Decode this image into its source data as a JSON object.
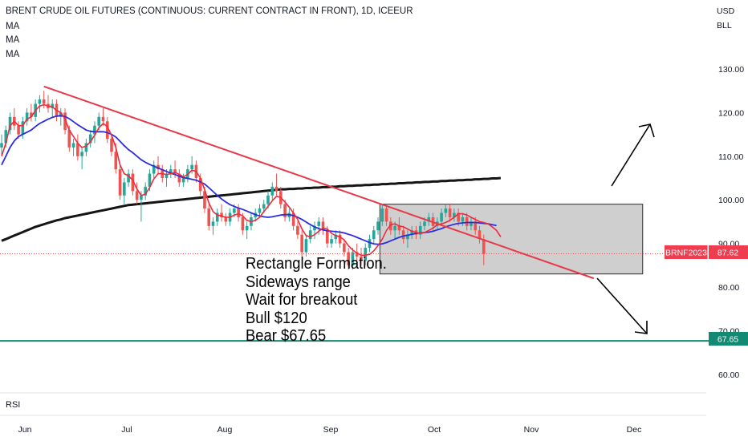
{
  "header": {
    "title": "BRENT CRUDE OIL FUTURES (CONTINUOUS: CURRENT CONTRACT IN FRONT), 1D, ICEEUR",
    "indicators": [
      "MA",
      "MA",
      "MA"
    ],
    "currency": "USD",
    "unit": "BLL"
  },
  "annotation": {
    "lines": [
      "Rectangle Formation.",
      "Sideways range",
      "Wait for breakout",
      "Bull $120",
      "Bear $67.65"
    ]
  },
  "sub_pane": {
    "label": "RSI"
  },
  "price_tag": {
    "symbol": "BRNF2023",
    "value": "87.62"
  },
  "level_tag": {
    "value": "67.65"
  },
  "colors": {
    "up": "#26a69a",
    "down": "#ef5350",
    "ma_fast": "#ef2a3c",
    "ma_mid": "#2a2de0",
    "ma_slow": "#151515",
    "trendline": "#e8394a",
    "support": "#138a74",
    "rectangle_fill": "#c8c8c8"
  },
  "chart_data": {
    "type": "candlestick",
    "title": "BRENT CRUDE OIL FUTURES (CONTINUOUS: CURRENT CONTRACT IN FRONT), 1D, ICEEUR",
    "y_axis": {
      "ticks": [
        60,
        70,
        80,
        90,
        100,
        110,
        120,
        130
      ],
      "tick_labels": [
        "60.00",
        "70.00",
        "80.00",
        "90.00",
        "100.00",
        "110.00",
        "120.00",
        "130.00"
      ],
      "range": [
        56.5,
        142.0
      ]
    },
    "x_axis": {
      "tick_labels": [
        "Jun",
        "Jul",
        "Aug",
        "Sep",
        "Oct",
        "Nov",
        "Dec"
      ]
    },
    "candles": [
      {
        "o": 112.0,
        "h": 115.0,
        "l": 110.0,
        "c": 113.0
      },
      {
        "o": 113.0,
        "h": 117.0,
        "l": 112.0,
        "c": 116.0
      },
      {
        "o": 116.0,
        "h": 120.0,
        "l": 115.0,
        "c": 119.0
      },
      {
        "o": 119.0,
        "h": 121.0,
        "l": 116.0,
        "c": 117.0
      },
      {
        "o": 117.0,
        "h": 118.0,
        "l": 114.0,
        "c": 115.0
      },
      {
        "o": 115.0,
        "h": 119.0,
        "l": 114.0,
        "c": 118.0
      },
      {
        "o": 118.0,
        "h": 121.0,
        "l": 117.0,
        "c": 120.0
      },
      {
        "o": 120.0,
        "h": 122.0,
        "l": 118.0,
        "c": 119.0
      },
      {
        "o": 119.0,
        "h": 123.0,
        "l": 118.0,
        "c": 122.0
      },
      {
        "o": 122.0,
        "h": 124.0,
        "l": 120.0,
        "c": 123.0
      },
      {
        "o": 123.0,
        "h": 125.0,
        "l": 121.0,
        "c": 122.0
      },
      {
        "o": 122.0,
        "h": 124.0,
        "l": 120.0,
        "c": 121.0
      },
      {
        "o": 121.0,
        "h": 123.0,
        "l": 119.0,
        "c": 122.0
      },
      {
        "o": 122.0,
        "h": 123.0,
        "l": 118.0,
        "c": 119.0
      },
      {
        "o": 119.0,
        "h": 121.0,
        "l": 117.0,
        "c": 120.0
      },
      {
        "o": 120.0,
        "h": 121.0,
        "l": 115.0,
        "c": 116.0
      },
      {
        "o": 116.0,
        "h": 117.0,
        "l": 111.0,
        "c": 112.0
      },
      {
        "o": 112.0,
        "h": 114.0,
        "l": 110.0,
        "c": 113.0
      },
      {
        "o": 113.0,
        "h": 115.0,
        "l": 109.0,
        "c": 110.0
      },
      {
        "o": 110.0,
        "h": 112.0,
        "l": 107.0,
        "c": 111.0
      },
      {
        "o": 111.0,
        "h": 114.0,
        "l": 110.0,
        "c": 113.0
      },
      {
        "o": 113.0,
        "h": 116.0,
        "l": 112.0,
        "c": 115.0
      },
      {
        "o": 115.0,
        "h": 118.0,
        "l": 113.0,
        "c": 117.0
      },
      {
        "o": 117.0,
        "h": 120.0,
        "l": 116.0,
        "c": 119.0
      },
      {
        "o": 119.0,
        "h": 121.0,
        "l": 117.0,
        "c": 118.0
      },
      {
        "o": 118.0,
        "h": 119.0,
        "l": 113.0,
        "c": 114.0
      },
      {
        "o": 114.0,
        "h": 115.0,
        "l": 110.0,
        "c": 111.0
      },
      {
        "o": 111.0,
        "h": 113.0,
        "l": 106.0,
        "c": 107.0
      },
      {
        "o": 107.0,
        "h": 108.0,
        "l": 100.0,
        "c": 101.0
      },
      {
        "o": 101.0,
        "h": 105.0,
        "l": 99.0,
        "c": 104.0
      },
      {
        "o": 104.0,
        "h": 107.0,
        "l": 103.0,
        "c": 106.0
      },
      {
        "o": 106.0,
        "h": 107.0,
        "l": 101.0,
        "c": 102.0
      },
      {
        "o": 102.0,
        "h": 104.0,
        "l": 99.0,
        "c": 100.0
      },
      {
        "o": 100.0,
        "h": 102.0,
        "l": 95.0,
        "c": 101.0
      },
      {
        "o": 101.0,
        "h": 104.0,
        "l": 100.0,
        "c": 103.0
      },
      {
        "o": 103.0,
        "h": 107.0,
        "l": 102.0,
        "c": 106.0
      },
      {
        "o": 106.0,
        "h": 109.0,
        "l": 105.0,
        "c": 108.0
      },
      {
        "o": 108.0,
        "h": 110.0,
        "l": 106.0,
        "c": 107.0
      },
      {
        "o": 107.0,
        "h": 108.0,
        "l": 104.0,
        "c": 105.0
      },
      {
        "o": 105.0,
        "h": 107.0,
        "l": 103.0,
        "c": 106.0
      },
      {
        "o": 106.0,
        "h": 108.0,
        "l": 105.0,
        "c": 107.0
      },
      {
        "o": 107.0,
        "h": 109.0,
        "l": 105.0,
        "c": 106.0
      },
      {
        "o": 106.0,
        "h": 107.0,
        "l": 103.0,
        "c": 104.0
      },
      {
        "o": 104.0,
        "h": 106.0,
        "l": 103.0,
        "c": 105.0
      },
      {
        "o": 105.0,
        "h": 108.0,
        "l": 104.0,
        "c": 107.0
      },
      {
        "o": 107.0,
        "h": 110.0,
        "l": 106.0,
        "c": 108.0
      },
      {
        "o": 108.0,
        "h": 109.0,
        "l": 104.0,
        "c": 105.0
      },
      {
        "o": 105.0,
        "h": 106.0,
        "l": 101.0,
        "c": 102.0
      },
      {
        "o": 102.0,
        "h": 103.0,
        "l": 97.0,
        "c": 98.0
      },
      {
        "o": 98.0,
        "h": 99.0,
        "l": 93.0,
        "c": 94.0
      },
      {
        "o": 94.0,
        "h": 96.0,
        "l": 92.0,
        "c": 95.0
      },
      {
        "o": 95.0,
        "h": 98.0,
        "l": 94.0,
        "c": 97.0
      },
      {
        "o": 97.0,
        "h": 99.0,
        "l": 95.0,
        "c": 96.0
      },
      {
        "o": 96.0,
        "h": 97.0,
        "l": 94.0,
        "c": 95.0
      },
      {
        "o": 95.0,
        "h": 98.0,
        "l": 94.0,
        "c": 97.0
      },
      {
        "o": 97.0,
        "h": 99.0,
        "l": 96.0,
        "c": 98.0
      },
      {
        "o": 98.0,
        "h": 99.0,
        "l": 95.0,
        "c": 96.0
      },
      {
        "o": 96.0,
        "h": 97.0,
        "l": 92.0,
        "c": 93.0
      },
      {
        "o": 93.0,
        "h": 95.0,
        "l": 91.0,
        "c": 94.0
      },
      {
        "o": 94.0,
        "h": 97.0,
        "l": 93.0,
        "c": 96.0
      },
      {
        "o": 96.0,
        "h": 98.0,
        "l": 95.0,
        "c": 97.0
      },
      {
        "o": 97.0,
        "h": 99.0,
        "l": 96.0,
        "c": 98.0
      },
      {
        "o": 98.0,
        "h": 100.0,
        "l": 97.0,
        "c": 99.0
      },
      {
        "o": 99.0,
        "h": 102.0,
        "l": 98.0,
        "c": 101.0
      },
      {
        "o": 101.0,
        "h": 104.0,
        "l": 100.0,
        "c": 103.0
      },
      {
        "o": 103.0,
        "h": 106.0,
        "l": 101.0,
        "c": 102.0
      },
      {
        "o": 102.0,
        "h": 103.0,
        "l": 98.0,
        "c": 99.0
      },
      {
        "o": 99.0,
        "h": 100.0,
        "l": 95.0,
        "c": 96.0
      },
      {
        "o": 96.0,
        "h": 98.0,
        "l": 95.0,
        "c": 97.0
      },
      {
        "o": 97.0,
        "h": 98.0,
        "l": 93.0,
        "c": 94.0
      },
      {
        "o": 94.0,
        "h": 95.0,
        "l": 91.0,
        "c": 92.0
      },
      {
        "o": 92.0,
        "h": 93.0,
        "l": 87.0,
        "c": 88.0
      },
      {
        "o": 88.0,
        "h": 92.0,
        "l": 87.0,
        "c": 91.0
      },
      {
        "o": 91.0,
        "h": 94.0,
        "l": 90.0,
        "c": 93.0
      },
      {
        "o": 93.0,
        "h": 95.0,
        "l": 91.0,
        "c": 94.0
      },
      {
        "o": 94.0,
        "h": 96.0,
        "l": 92.0,
        "c": 95.0
      },
      {
        "o": 95.0,
        "h": 96.0,
        "l": 92.0,
        "c": 93.0
      },
      {
        "o": 93.0,
        "h": 94.0,
        "l": 89.0,
        "c": 90.0
      },
      {
        "o": 90.0,
        "h": 92.0,
        "l": 89.0,
        "c": 91.0
      },
      {
        "o": 91.0,
        "h": 93.0,
        "l": 90.0,
        "c": 92.0
      },
      {
        "o": 92.0,
        "h": 93.0,
        "l": 89.0,
        "c": 90.0
      },
      {
        "o": 90.0,
        "h": 91.0,
        "l": 87.0,
        "c": 88.0
      },
      {
        "o": 88.0,
        "h": 89.0,
        "l": 84.0,
        "c": 85.0
      },
      {
        "o": 85.0,
        "h": 89.0,
        "l": 84.0,
        "c": 88.0
      },
      {
        "o": 88.0,
        "h": 90.0,
        "l": 86.0,
        "c": 87.0
      },
      {
        "o": 87.0,
        "h": 89.0,
        "l": 85.0,
        "c": 86.0
      },
      {
        "o": 86.0,
        "h": 90.0,
        "l": 85.0,
        "c": 89.0
      },
      {
        "o": 89.0,
        "h": 92.0,
        "l": 88.0,
        "c": 91.0
      },
      {
        "o": 91.0,
        "h": 94.0,
        "l": 90.0,
        "c": 93.0
      },
      {
        "o": 93.0,
        "h": 96.0,
        "l": 92.0,
        "c": 95.0
      },
      {
        "o": 95.0,
        "h": 99.0,
        "l": 94.0,
        "c": 98.0
      },
      {
        "o": 98.0,
        "h": 99.0,
        "l": 94.0,
        "c": 95.0
      },
      {
        "o": 95.0,
        "h": 96.0,
        "l": 92.0,
        "c": 93.0
      },
      {
        "o": 93.0,
        "h": 95.0,
        "l": 91.0,
        "c": 94.0
      },
      {
        "o": 94.0,
        "h": 96.0,
        "l": 92.0,
        "c": 93.0
      },
      {
        "o": 93.0,
        "h": 94.0,
        "l": 90.0,
        "c": 91.0
      },
      {
        "o": 91.0,
        "h": 93.0,
        "l": 89.0,
        "c": 92.0
      },
      {
        "o": 92.0,
        "h": 94.0,
        "l": 91.0,
        "c": 93.0
      },
      {
        "o": 93.0,
        "h": 94.0,
        "l": 91.0,
        "c": 92.0
      },
      {
        "o": 92.0,
        "h": 95.0,
        "l": 91.0,
        "c": 94.0
      },
      {
        "o": 94.0,
        "h": 96.0,
        "l": 93.0,
        "c": 95.0
      },
      {
        "o": 95.0,
        "h": 97.0,
        "l": 94.0,
        "c": 96.0
      },
      {
        "o": 96.0,
        "h": 97.0,
        "l": 93.0,
        "c": 94.0
      },
      {
        "o": 94.0,
        "h": 96.0,
        "l": 93.0,
        "c": 95.0
      },
      {
        "o": 95.0,
        "h": 98.0,
        "l": 94.0,
        "c": 97.0
      },
      {
        "o": 97.0,
        "h": 99.0,
        "l": 96.0,
        "c": 98.0
      },
      {
        "o": 98.0,
        "h": 99.0,
        "l": 95.0,
        "c": 96.0
      },
      {
        "o": 96.0,
        "h": 98.0,
        "l": 95.0,
        "c": 97.0
      },
      {
        "o": 97.0,
        "h": 98.0,
        "l": 94.0,
        "c": 95.0
      },
      {
        "o": 95.0,
        "h": 97.0,
        "l": 94.0,
        "c": 96.0
      },
      {
        "o": 96.0,
        "h": 97.0,
        "l": 93.0,
        "c": 94.0
      },
      {
        "o": 94.0,
        "h": 96.0,
        "l": 93.0,
        "c": 95.0
      },
      {
        "o": 95.0,
        "h": 96.0,
        "l": 92.0,
        "c": 93.0
      },
      {
        "o": 93.0,
        "h": 94.0,
        "l": 90.0,
        "c": 91.0
      },
      {
        "o": 91.0,
        "h": 92.0,
        "l": 85.0,
        "c": 87.62
      }
    ],
    "moving_averages": [
      {
        "label": "MA",
        "role": "fast",
        "color": "#ef2a3c",
        "values": [
          110.0,
          113.0,
          117.0,
          118.0,
          117.0,
          117.0,
          118.5,
          119.0,
          120.5,
          121.5,
          121.8,
          121.5,
          121.3,
          120.5,
          120.0,
          118.5,
          116.0,
          114.5,
          113.0,
          112.0,
          112.3,
          113.3,
          114.8,
          116.5,
          117.5,
          116.8,
          114.8,
          112.0,
          108.0,
          106.0,
          105.5,
          104.5,
          102.5,
          101.0,
          101.3,
          102.8,
          104.8,
          106.0,
          106.0,
          105.8,
          106.0,
          106.3,
          105.8,
          105.3,
          105.8,
          106.8,
          106.5,
          105.0,
          102.3,
          99.3,
          97.3,
          96.5,
          96.3,
          96.0,
          96.0,
          96.5,
          96.8,
          96.3,
          95.3,
          95.0,
          95.3,
          96.0,
          97.3,
          98.5,
          99.8,
          100.8,
          100.5,
          99.5,
          98.3,
          97.0,
          95.5,
          93.3,
          91.8,
          91.5,
          92.0,
          92.8,
          93.5,
          93.3,
          92.3,
          91.8,
          91.5,
          90.8,
          89.5,
          88.5,
          87.8,
          87.3,
          87.3,
          87.5,
          88.3,
          89.5,
          91.0,
          93.0,
          94.3,
          94.5,
          94.0,
          93.8,
          93.3,
          92.8,
          92.5,
          92.3,
          92.5,
          93.0,
          93.5,
          94.3,
          94.5,
          94.8,
          95.3,
          96.0,
          96.8,
          96.8,
          96.5,
          96.0,
          95.5,
          95.0,
          94.8,
          94.5,
          93.8,
          93.0,
          91.5
        ]
      },
      {
        "label": "MA",
        "role": "mid",
        "color": "#2a2de0",
        "values": [
          108.0,
          110.0,
          112.0,
          113.5,
          114.5,
          115.0,
          115.5,
          116.0,
          116.8,
          117.5,
          118.0,
          118.5,
          118.9,
          119.2,
          119.3,
          119.1,
          118.6,
          117.9,
          117.2,
          116.6,
          116.0,
          115.7,
          115.6,
          115.6,
          115.6,
          115.4,
          115.0,
          114.4,
          113.4,
          112.4,
          111.5,
          110.8,
          110.0,
          109.2,
          108.6,
          108.1,
          107.7,
          107.3,
          106.9,
          106.5,
          106.1,
          105.8,
          105.4,
          105.1,
          104.9,
          104.7,
          104.5,
          104.1,
          103.6,
          102.8,
          101.9,
          101.0,
          100.2,
          99.5,
          98.9,
          98.5,
          98.1,
          97.8,
          97.4,
          97.0,
          96.6,
          96.3,
          96.1,
          96.0,
          96.1,
          96.3,
          96.5,
          96.6,
          96.6,
          96.4,
          96.0,
          95.5,
          94.9,
          94.3,
          93.8,
          93.4,
          93.1,
          92.9,
          92.8,
          92.7,
          92.6,
          92.4,
          92.1,
          91.8,
          91.4,
          91.0,
          90.6,
          90.2,
          89.9,
          89.8,
          89.9,
          90.2,
          90.6,
          91.0,
          91.4,
          91.7,
          91.9,
          92.1,
          92.3,
          92.4,
          92.5,
          92.6,
          92.8,
          93.1,
          93.4,
          93.8,
          94.1,
          94.4,
          94.6,
          94.7,
          94.8,
          94.8,
          94.8,
          94.7,
          94.6,
          94.5,
          94.3,
          94.1
        ]
      },
      {
        "label": "MA",
        "role": "slow",
        "color": "#151515",
        "values": [
          90.6,
          91.0,
          91.4,
          91.8,
          92.2,
          92.6,
          93.0,
          93.4,
          93.8,
          94.1,
          94.4,
          94.7,
          95.0,
          95.3,
          95.5,
          95.8,
          96.0,
          96.2,
          96.4,
          96.6,
          96.8,
          97.0,
          97.2,
          97.4,
          97.6,
          97.8,
          98.0,
          98.2,
          98.4,
          98.6,
          98.8,
          98.9,
          99.0,
          99.1,
          99.2,
          99.3,
          99.4,
          99.5,
          99.6,
          99.7,
          99.8,
          99.9,
          100.0,
          100.1,
          100.2,
          100.3,
          100.4,
          100.5,
          100.6,
          100.7,
          100.8,
          100.9,
          101.0,
          101.1,
          101.2,
          101.3,
          101.4,
          101.5,
          101.6,
          101.7,
          101.8,
          101.9,
          102.0,
          102.1,
          102.2,
          102.3,
          102.4,
          102.4,
          102.5,
          102.5,
          102.6,
          102.6,
          102.7,
          102.7,
          102.8,
          102.8,
          102.9,
          102.9,
          103.0,
          103.0,
          103.1,
          103.1,
          103.2,
          103.2,
          103.3,
          103.3,
          103.4,
          103.4,
          103.5,
          103.5,
          103.6,
          103.6,
          103.7,
          103.7,
          103.8,
          103.8,
          103.9,
          103.9,
          104.0,
          104.0,
          104.1,
          104.1,
          104.2,
          104.2,
          104.3,
          104.3,
          104.4,
          104.4,
          104.5,
          104.5,
          104.6,
          104.6,
          104.7,
          104.7,
          104.8,
          104.8,
          104.9,
          104.9,
          105.0
        ]
      }
    ],
    "drawings": {
      "trendline_start": {
        "bar": 10,
        "price": 126.0
      },
      "trendline_end": {
        "bar": 140,
        "price": 82.0
      },
      "rectangle": {
        "from_bar": 90,
        "to_bar": 151,
        "top": 99.0,
        "bottom": 83.0
      },
      "support_level": 67.65,
      "last_price": 87.62,
      "bull_target": 120,
      "bear_target": 67.65
    }
  }
}
